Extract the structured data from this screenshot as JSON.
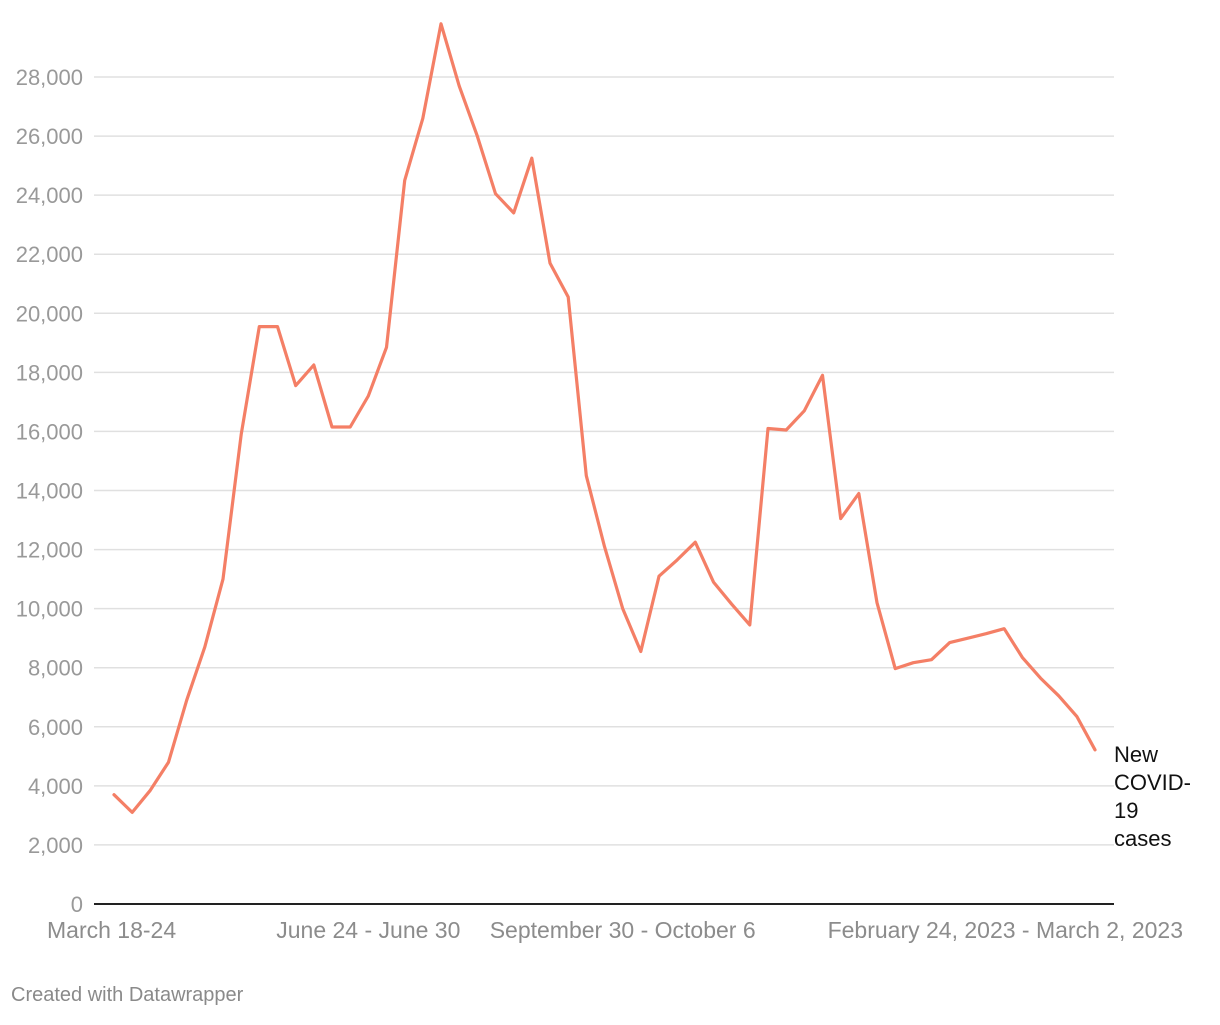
{
  "chart_data": {
    "type": "line",
    "title": "",
    "xlabel": "",
    "ylabel": "",
    "ylim": [
      0,
      28000
    ],
    "y_ticks": [
      0,
      2000,
      4000,
      6000,
      8000,
      10000,
      12000,
      14000,
      16000,
      18000,
      20000,
      22000,
      24000,
      26000,
      28000
    ],
    "y_tick_labels": [
      "0",
      "2,000",
      "4,000",
      "6,000",
      "8,000",
      "10,000",
      "12,000",
      "14,000",
      "16,000",
      "18,000",
      "20,000",
      "22,000",
      "24,000",
      "26,000",
      "28,000"
    ],
    "x_tick_labels": [
      {
        "index": 0,
        "label": "March 18-24"
      },
      {
        "index": 14,
        "label": "June 24 - June 30"
      },
      {
        "index": 28,
        "label": "September 30 - October 6"
      },
      {
        "index": 54,
        "label": "February 24, 2023 - March 2, 2023"
      }
    ],
    "grid": true,
    "series": [
      {
        "name": "New COVID-19 cases",
        "color": "#f47f66",
        "label_lines": [
          "New",
          "COVID-",
          "19",
          "cases"
        ],
        "values": [
          3700,
          3100,
          3850,
          4800,
          6900,
          8700,
          11000,
          15900,
          19550,
          19550,
          17550,
          18250,
          16150,
          16150,
          17200,
          18850,
          24500,
          26600,
          29800,
          27700,
          26000,
          24050,
          23400,
          25250,
          21700,
          20550,
          14500,
          12100,
          10000,
          8550,
          11100,
          11650,
          12250,
          10900,
          10150,
          9450,
          16100,
          16050,
          16700,
          17900,
          13050,
          13900,
          10200,
          7970,
          8170,
          8270,
          8850,
          9000,
          9150,
          9320,
          8350,
          7650,
          7050,
          6350,
          5220
        ]
      }
    ]
  },
  "footer": {
    "credit": "Created with Datawrapper"
  }
}
